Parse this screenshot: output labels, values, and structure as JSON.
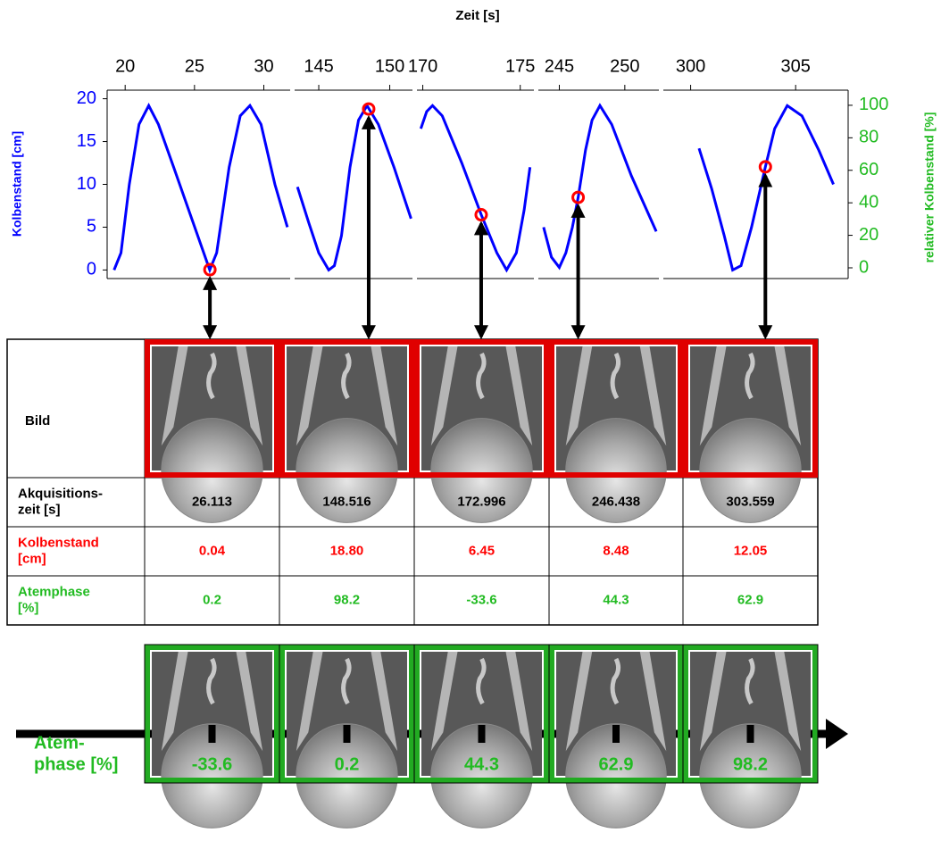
{
  "title": "Zeit [s]",
  "chart_data": {
    "type": "line",
    "y_label": "Kolbenstand [cm]",
    "y2_label": "relativer Kolbenstand [%]",
    "ylim": [
      -1,
      21
    ],
    "yticks": [
      0,
      5,
      10,
      15,
      20
    ],
    "y2lim": [
      -6.6,
      109.3
    ],
    "y2ticks": [
      0,
      20,
      40,
      60,
      80,
      100
    ],
    "color": "#0000ff",
    "marker_color": "#ff0000",
    "panels": [
      {
        "xlim": [
          18.7,
          31.9
        ],
        "xticks": [
          20,
          25,
          30
        ],
        "x": [
          19.2,
          19.7,
          20.3,
          21,
          21.7,
          22.4,
          23.5,
          24.8,
          26.1,
          26.6,
          27.5,
          28.3,
          29,
          29.8,
          30.8,
          31.7
        ],
        "values": [
          0,
          2,
          10,
          17,
          19.2,
          17,
          12,
          6,
          0,
          2,
          12,
          18,
          19.2,
          17,
          10,
          5
        ]
      },
      {
        "xlim": [
          143.3,
          151.6
        ],
        "xticks": [
          145,
          150
        ],
        "x": [
          143.5,
          144.3,
          145,
          145.7,
          146.1,
          146.6,
          147.2,
          147.8,
          148.4,
          149.2,
          150.3,
          151.5
        ],
        "values": [
          9.7,
          5.5,
          2,
          0,
          0.5,
          4,
          12,
          17.5,
          19.2,
          17,
          12,
          6
        ]
      },
      {
        "xlim": [
          169.7,
          175.7
        ],
        "xticks": [
          170,
          175
        ],
        "x": [
          169.9,
          170.2,
          170.5,
          171,
          172,
          173,
          173.8,
          174.3,
          174.8,
          175.2,
          175.5
        ],
        "values": [
          16.5,
          18.5,
          19.2,
          18,
          12.5,
          6.45,
          2,
          0,
          2,
          7,
          12
        ]
      },
      {
        "xlim": [
          243.4,
          252.6
        ],
        "xticks": [
          245,
          250
        ],
        "x": [
          243.8,
          244.4,
          245,
          245.5,
          246,
          246.44,
          247,
          247.5,
          248.1,
          249,
          250.5,
          252.4
        ],
        "values": [
          5,
          1.5,
          0.3,
          2,
          5,
          8.48,
          14,
          17.5,
          19.2,
          17,
          11,
          4.5
        ]
      },
      {
        "xlim": [
          298.7,
          307.5
        ],
        "xticks": [
          300,
          305
        ],
        "x": [
          300.4,
          301,
          301.6,
          302,
          302.4,
          302.9,
          303.56,
          304,
          304.6,
          305.3,
          306.1,
          306.8
        ],
        "values": [
          14.2,
          9.5,
          4,
          0,
          0.5,
          5,
          12.05,
          16.5,
          19.2,
          18,
          14,
          10
        ]
      }
    ]
  },
  "table": {
    "image_row_label": "Bild",
    "rows": [
      {
        "label": [
          "Akquisitions-",
          "zeit [s]"
        ],
        "cells": [
          "26.113",
          "148.516",
          "172.996",
          "246.438",
          "303.559"
        ]
      },
      {
        "label": [
          "Kolbenstand",
          "[cm]"
        ],
        "cells": [
          "0.04",
          "18.80",
          "6.45",
          "8.48",
          "12.05"
        ]
      },
      {
        "label": [
          "Atemphase",
          "[%]"
        ],
        "cells": [
          "0.2",
          "98.2",
          "-33.6",
          "44.3",
          "62.9"
        ]
      }
    ]
  },
  "phase_axis": {
    "label": [
      "Atem-",
      "phase [%]"
    ],
    "ticks": [
      "-33.6",
      "0.2",
      "44.3",
      "62.9",
      "98.2"
    ]
  }
}
